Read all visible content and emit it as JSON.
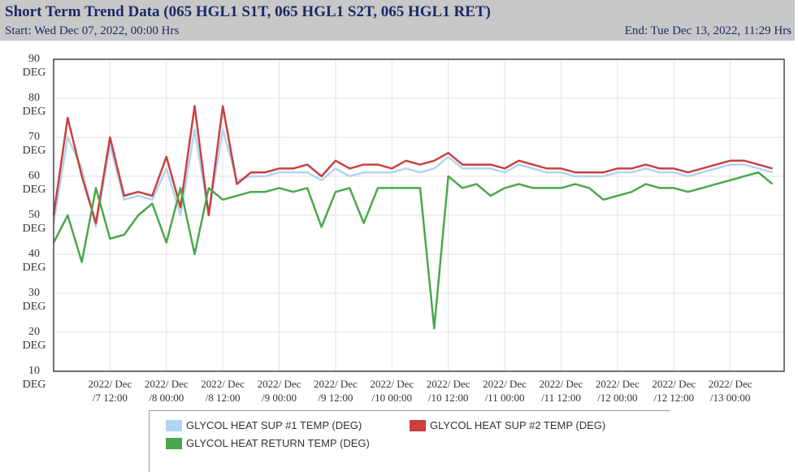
{
  "title": "Short Term Trend Data (065 HGL1 S1T, 065 HGL1 S2T, 065 HGL1 RET)",
  "start": "Start: Wed Dec 07, 2022, 00:00 Hrs",
  "end": "End: Tue Dec 13, 2022, 11:29 Hrs",
  "chart_data": {
    "type": "line",
    "xlim": [
      "2022-12-07T00:00",
      "2022-12-13T11:29"
    ],
    "xticks": [
      {
        "value": "2022-12-07T12:00",
        "label": "2022/ Dec /7 12:00"
      },
      {
        "value": "2022-12-08T00:00",
        "label": "2022/ Dec /8 00:00"
      },
      {
        "value": "2022-12-08T12:00",
        "label": "2022/ Dec /8 12:00"
      },
      {
        "value": "2022-12-09T00:00",
        "label": "2022/ Dec /9 00:00"
      },
      {
        "value": "2022-12-09T12:00",
        "label": "2022/ Dec /9 12:00"
      },
      {
        "value": "2022-12-10T00:00",
        "label": "2022/ Dec /10 00:00"
      },
      {
        "value": "2022-12-10T12:00",
        "label": "2022/ Dec /10 12:00"
      },
      {
        "value": "2022-12-11T00:00",
        "label": "2022/ Dec /11 00:00"
      },
      {
        "value": "2022-12-11T12:00",
        "label": "2022/ Dec /11 12:00"
      },
      {
        "value": "2022-12-12T00:00",
        "label": "2022/ Dec /12 00:00"
      },
      {
        "value": "2022-12-12T12:00",
        "label": "2022/ Dec /12 12:00"
      },
      {
        "value": "2022-12-13T00:00",
        "label": "2022/ Dec /13 00:00"
      }
    ],
    "ylim": [
      10,
      90
    ],
    "yticks": [
      {
        "value": 90,
        "label": "90 DEG"
      },
      {
        "value": 80,
        "label": "80 DEG"
      },
      {
        "value": 70,
        "label": "70 DEG"
      },
      {
        "value": 60,
        "label": "60 DEG"
      },
      {
        "value": 50,
        "label": "50 DEG"
      },
      {
        "value": 40,
        "label": "40 DEG"
      },
      {
        "value": 30,
        "label": "30 DEG"
      },
      {
        "value": 20,
        "label": "20 DEG"
      },
      {
        "value": 10,
        "label": "10 DEG"
      }
    ],
    "grid": true,
    "x": [
      "2022-12-07T00:00",
      "2022-12-07T03:00",
      "2022-12-07T06:00",
      "2022-12-07T09:00",
      "2022-12-07T12:00",
      "2022-12-07T15:00",
      "2022-12-07T18:00",
      "2022-12-07T21:00",
      "2022-12-08T00:00",
      "2022-12-08T03:00",
      "2022-12-08T06:00",
      "2022-12-08T09:00",
      "2022-12-08T12:00",
      "2022-12-08T15:00",
      "2022-12-08T18:00",
      "2022-12-08T21:00",
      "2022-12-09T00:00",
      "2022-12-09T03:00",
      "2022-12-09T06:00",
      "2022-12-09T09:00",
      "2022-12-09T12:00",
      "2022-12-09T15:00",
      "2022-12-09T18:00",
      "2022-12-09T21:00",
      "2022-12-10T00:00",
      "2022-12-10T03:00",
      "2022-12-10T06:00",
      "2022-12-10T09:00",
      "2022-12-10T12:00",
      "2022-12-10T15:00",
      "2022-12-10T18:00",
      "2022-12-10T21:00",
      "2022-12-11T00:00",
      "2022-12-11T03:00",
      "2022-12-11T06:00",
      "2022-12-11T09:00",
      "2022-12-11T12:00",
      "2022-12-11T15:00",
      "2022-12-11T18:00",
      "2022-12-11T21:00",
      "2022-12-12T00:00",
      "2022-12-12T03:00",
      "2022-12-12T06:00",
      "2022-12-12T09:00",
      "2022-12-12T12:00",
      "2022-12-12T15:00",
      "2022-12-12T18:00",
      "2022-12-12T21:00",
      "2022-12-13T00:00",
      "2022-12-13T03:00",
      "2022-12-13T06:00",
      "2022-12-13T09:00"
    ],
    "series": [
      {
        "name": "GLYCOL HEAT SUP #1 TEMP (DEG)",
        "color": "#b3d4f0",
        "values": [
          48,
          70,
          62,
          47,
          68,
          54,
          55,
          54,
          62,
          50,
          72,
          50,
          72,
          59,
          60,
          60,
          61,
          61,
          61,
          59,
          62,
          60,
          61,
          61,
          61,
          62,
          61,
          62,
          65,
          62,
          62,
          62,
          61,
          63,
          62,
          61,
          61,
          60,
          60,
          60,
          61,
          61,
          62,
          61,
          61,
          60,
          61,
          62,
          63,
          63,
          62,
          61
        ]
      },
      {
        "name": "GLYCOL HEAT SUP #2 TEMP (DEG)",
        "color": "#c94040",
        "values": [
          50,
          75,
          60,
          48,
          70,
          55,
          56,
          55,
          65,
          52,
          78,
          50,
          78,
          58,
          61,
          61,
          62,
          62,
          63,
          60,
          64,
          62,
          63,
          63,
          62,
          64,
          63,
          64,
          66,
          63,
          63,
          63,
          62,
          64,
          63,
          62,
          62,
          61,
          61,
          61,
          62,
          62,
          63,
          62,
          62,
          61,
          62,
          63,
          64,
          64,
          63,
          62
        ]
      },
      {
        "name": "GLYCOL HEAT RETURN TEMP (DEG)",
        "color": "#4aa84a",
        "values": [
          43,
          50,
          38,
          57,
          44,
          45,
          50,
          53,
          43,
          57,
          40,
          57,
          54,
          55,
          56,
          56,
          57,
          56,
          57,
          47,
          56,
          57,
          48,
          57,
          57,
          57,
          57,
          21,
          60,
          57,
          58,
          55,
          57,
          58,
          57,
          57,
          57,
          58,
          57,
          54,
          55,
          56,
          58,
          57,
          57,
          56,
          57,
          58,
          59,
          60,
          61,
          58
        ]
      }
    ]
  }
}
